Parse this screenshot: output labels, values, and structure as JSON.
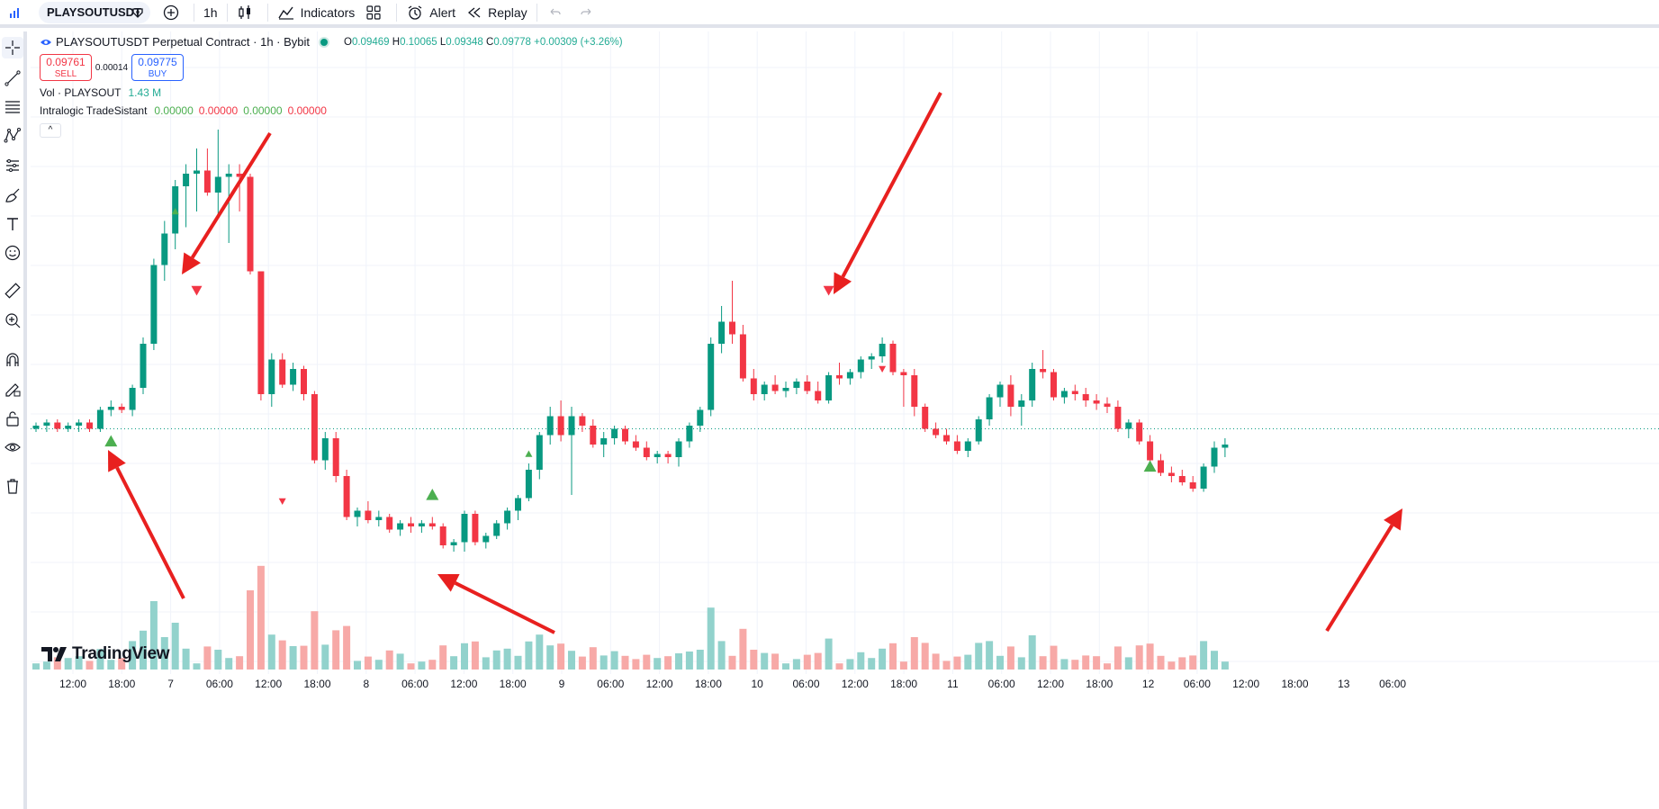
{
  "toolbar": {
    "symbol": "PLAYSOUTUSDT",
    "interval": "1h",
    "indicators_label": "Indicators",
    "alert_label": "Alert",
    "replay_label": "Replay"
  },
  "legend": {
    "title": "PLAYSOUTUSDT Perpetual Contract · 1h · Bybit",
    "ohlc": {
      "o_key": "O",
      "o": "0.09469",
      "h_key": "H",
      "h": "0.10065",
      "l_key": "L",
      "l": "0.09348",
      "c_key": "C",
      "c": "0.09778",
      "change": "+0.00309 (+3.26%)"
    },
    "sell_price": "0.09761",
    "sell_label": "SELL",
    "spread": "0.00014",
    "buy_price": "0.09775",
    "buy_label": "BUY",
    "vol_label": "Vol · PLAYSOUT",
    "vol_value": "1.43 M",
    "indicator_name": "Intralogic TradeSistant",
    "indicator_values": [
      "0.00000",
      "0.00000",
      "0.00000",
      "0.00000"
    ],
    "collapse_glyph": "^"
  },
  "brand": "TradingView",
  "x_axis_labels": [
    "12:00",
    "18:00",
    "7",
    "06:00",
    "12:00",
    "18:00",
    "8",
    "06:00",
    "12:00",
    "18:00",
    "9",
    "06:00",
    "12:00",
    "18:00",
    "10",
    "06:00",
    "12:00",
    "18:00",
    "11",
    "06:00",
    "12:00",
    "18:00",
    "12",
    "06:00",
    "12:00",
    "18:00",
    "13",
    "06:00"
  ],
  "colors": {
    "up": "#089981",
    "down": "#f23645",
    "vol_up": "#92d2cc",
    "vol_down": "#f7a9a7",
    "arrow": "#e8201f",
    "signal_up": "#4caf50",
    "signal_down": "#f23645"
  },
  "chart_data": {
    "type": "candlestick",
    "symbol": "PLAYSOUTUSDT",
    "interval": "1h",
    "y_range_estimate": [
      0.088,
      0.106
    ],
    "candles_ohlc": [
      [
        0.0951,
        0.0953,
        0.095,
        0.0952
      ],
      [
        0.0952,
        0.0954,
        0.095,
        0.0953
      ],
      [
        0.0953,
        0.0954,
        0.095,
        0.0951
      ],
      [
        0.0951,
        0.0953,
        0.095,
        0.0952
      ],
      [
        0.0952,
        0.0954,
        0.095,
        0.0953
      ],
      [
        0.0953,
        0.0954,
        0.095,
        0.0951
      ],
      [
        0.0951,
        0.0958,
        0.095,
        0.0957
      ],
      [
        0.0957,
        0.096,
        0.0955,
        0.0958
      ],
      [
        0.0958,
        0.0959,
        0.0956,
        0.0957
      ],
      [
        0.0957,
        0.0965,
        0.0955,
        0.0964
      ],
      [
        0.0964,
        0.098,
        0.0962,
        0.0978
      ],
      [
        0.0978,
        0.1005,
        0.0976,
        0.1003
      ],
      [
        0.1003,
        0.1017,
        0.0998,
        0.1013
      ],
      [
        0.1013,
        0.103,
        0.1008,
        0.1028
      ],
      [
        0.1028,
        0.1035,
        0.1015,
        0.1032
      ],
      [
        0.1032,
        0.104,
        0.102,
        0.1033
      ],
      [
        0.1033,
        0.104,
        0.1025,
        0.1026
      ],
      [
        0.1026,
        0.1046,
        0.1018,
        0.1031
      ],
      [
        0.1031,
        0.1035,
        0.101,
        0.1032
      ],
      [
        0.1032,
        0.1035,
        0.102,
        0.1031
      ],
      [
        0.1031,
        0.1032,
        0.1,
        0.1001
      ],
      [
        0.1001,
        0.1001,
        0.096,
        0.0962
      ],
      [
        0.0962,
        0.0975,
        0.0958,
        0.0973
      ],
      [
        0.0973,
        0.0975,
        0.0964,
        0.0965
      ],
      [
        0.0965,
        0.0972,
        0.0963,
        0.097
      ],
      [
        0.097,
        0.0971,
        0.096,
        0.0962
      ],
      [
        0.0962,
        0.0963,
        0.094,
        0.0941
      ],
      [
        0.0941,
        0.095,
        0.0938,
        0.0948
      ],
      [
        0.0948,
        0.095,
        0.0934,
        0.0936
      ],
      [
        0.0936,
        0.0938,
        0.0922,
        0.0923
      ],
      [
        0.0923,
        0.0926,
        0.092,
        0.0925
      ],
      [
        0.0925,
        0.0928,
        0.0921,
        0.0922
      ],
      [
        0.0922,
        0.0925,
        0.092,
        0.0923
      ],
      [
        0.0923,
        0.0924,
        0.0918,
        0.0919
      ],
      [
        0.0919,
        0.0922,
        0.0917,
        0.0921
      ],
      [
        0.0921,
        0.0923,
        0.0918,
        0.092
      ],
      [
        0.092,
        0.0922,
        0.0918,
        0.0921
      ],
      [
        0.0921,
        0.0923,
        0.0919,
        0.092
      ],
      [
        0.092,
        0.0921,
        0.0913,
        0.0914
      ],
      [
        0.0914,
        0.0916,
        0.0912,
        0.0915
      ],
      [
        0.0915,
        0.0925,
        0.0912,
        0.0924
      ],
      [
        0.0924,
        0.0925,
        0.0914,
        0.0915
      ],
      [
        0.0915,
        0.0918,
        0.0913,
        0.0917
      ],
      [
        0.0917,
        0.0922,
        0.0916,
        0.0921
      ],
      [
        0.0921,
        0.0926,
        0.0919,
        0.0925
      ],
      [
        0.0925,
        0.093,
        0.0922,
        0.0929
      ],
      [
        0.0929,
        0.094,
        0.0928,
        0.0938
      ],
      [
        0.0938,
        0.095,
        0.0935,
        0.0949
      ],
      [
        0.0949,
        0.0958,
        0.0946,
        0.0955
      ],
      [
        0.0955,
        0.096,
        0.0947,
        0.0949
      ],
      [
        0.0949,
        0.0958,
        0.093,
        0.0955
      ],
      [
        0.0955,
        0.0956,
        0.095,
        0.0952
      ],
      [
        0.0952,
        0.0954,
        0.0945,
        0.0946
      ],
      [
        0.0946,
        0.095,
        0.0942,
        0.0948
      ],
      [
        0.0948,
        0.0952,
        0.0946,
        0.0951
      ],
      [
        0.0951,
        0.0952,
        0.0946,
        0.0947
      ],
      [
        0.0947,
        0.0949,
        0.0944,
        0.0945
      ],
      [
        0.0945,
        0.0947,
        0.0941,
        0.0942
      ],
      [
        0.0942,
        0.0944,
        0.094,
        0.0943
      ],
      [
        0.0943,
        0.0944,
        0.094,
        0.0942
      ],
      [
        0.0942,
        0.0948,
        0.0939,
        0.0947
      ],
      [
        0.0947,
        0.0953,
        0.0945,
        0.0952
      ],
      [
        0.0952,
        0.0958,
        0.095,
        0.0957
      ],
      [
        0.0957,
        0.098,
        0.0955,
        0.0978
      ],
      [
        0.0978,
        0.099,
        0.0975,
        0.0985
      ],
      [
        0.0985,
        0.0998,
        0.0978,
        0.0981
      ],
      [
        0.0981,
        0.0984,
        0.0966,
        0.0967
      ],
      [
        0.0967,
        0.097,
        0.096,
        0.0962
      ],
      [
        0.0962,
        0.0966,
        0.096,
        0.0965
      ],
      [
        0.0965,
        0.0968,
        0.0962,
        0.0963
      ],
      [
        0.0963,
        0.0966,
        0.0961,
        0.0964
      ],
      [
        0.0964,
        0.0967,
        0.0962,
        0.0966
      ],
      [
        0.0966,
        0.0968,
        0.0962,
        0.0963
      ],
      [
        0.0963,
        0.0966,
        0.0959,
        0.096
      ],
      [
        0.096,
        0.0969,
        0.0959,
        0.0968
      ],
      [
        0.0968,
        0.0972,
        0.0965,
        0.0967
      ],
      [
        0.0967,
        0.097,
        0.0965,
        0.0969
      ],
      [
        0.0969,
        0.0974,
        0.0967,
        0.0973
      ],
      [
        0.0973,
        0.0975,
        0.097,
        0.0974
      ],
      [
        0.0974,
        0.098,
        0.0972,
        0.0978
      ],
      [
        0.0978,
        0.0979,
        0.0968,
        0.0969
      ],
      [
        0.0969,
        0.097,
        0.0958,
        0.0968
      ],
      [
        0.0968,
        0.097,
        0.0955,
        0.0958
      ],
      [
        0.0958,
        0.0959,
        0.095,
        0.0951
      ],
      [
        0.0951,
        0.0953,
        0.0948,
        0.0949
      ],
      [
        0.0949,
        0.0951,
        0.0946,
        0.0947
      ],
      [
        0.0947,
        0.0949,
        0.0943,
        0.0944
      ],
      [
        0.0944,
        0.0948,
        0.0942,
        0.0947
      ],
      [
        0.0947,
        0.0955,
        0.0946,
        0.0954
      ],
      [
        0.0954,
        0.0962,
        0.0952,
        0.0961
      ],
      [
        0.0961,
        0.0966,
        0.0958,
        0.0965
      ],
      [
        0.0965,
        0.0968,
        0.0955,
        0.0958
      ],
      [
        0.0958,
        0.0962,
        0.0952,
        0.096
      ],
      [
        0.096,
        0.0972,
        0.0958,
        0.097
      ],
      [
        0.097,
        0.0976,
        0.0967,
        0.0969
      ],
      [
        0.0969,
        0.097,
        0.096,
        0.0961
      ],
      [
        0.0961,
        0.0964,
        0.0959,
        0.0963
      ],
      [
        0.0963,
        0.0965,
        0.096,
        0.0962
      ],
      [
        0.0962,
        0.0964,
        0.0958,
        0.096
      ],
      [
        0.096,
        0.0962,
        0.0957,
        0.0959
      ],
      [
        0.0959,
        0.0961,
        0.0956,
        0.0958
      ],
      [
        0.0958,
        0.096,
        0.095,
        0.0951
      ],
      [
        0.0951,
        0.0954,
        0.0948,
        0.0953
      ],
      [
        0.0953,
        0.0954,
        0.0946,
        0.0947
      ],
      [
        0.0947,
        0.0949,
        0.094,
        0.0941
      ],
      [
        0.0941,
        0.0943,
        0.0936,
        0.0937
      ],
      [
        0.0937,
        0.0939,
        0.0934,
        0.0936
      ],
      [
        0.0936,
        0.0938,
        0.0933,
        0.0934
      ],
      [
        0.0934,
        0.0936,
        0.0931,
        0.0932
      ],
      [
        0.0932,
        0.094,
        0.0931,
        0.0939
      ],
      [
        0.0939,
        0.0947,
        0.0937,
        0.0945
      ],
      [
        0.0945,
        0.0948,
        0.0942,
        0.0946
      ]
    ],
    "signals": [
      {
        "type": "buy",
        "label": "up-triangle"
      },
      {
        "type": "sell",
        "label": "down-triangle"
      }
    ],
    "x_labels": [
      "12:00",
      "18:00",
      "7",
      "06:00",
      "12:00",
      "18:00",
      "8",
      "06:00",
      "12:00",
      "18:00",
      "9",
      "06:00",
      "12:00",
      "18:00",
      "10",
      "06:00",
      "12:00",
      "18:00",
      "11",
      "06:00",
      "12:00",
      "18:00",
      "12",
      "06:00",
      "12:00",
      "18:00",
      "13",
      "06:00"
    ]
  }
}
